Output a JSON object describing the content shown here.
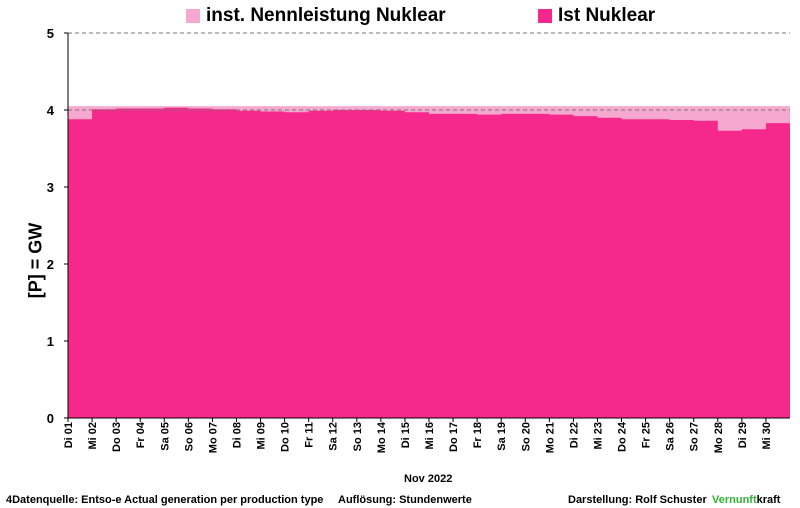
{
  "legend": [
    {
      "label": "inst. Nennleistung Nuklear",
      "color": "#f7a8cf"
    },
    {
      "label": "Ist Nuklear",
      "color": "#f7288c"
    }
  ],
  "footer": {
    "source": "4Datenquelle: Entso-e  Actual generation per production type",
    "resolution": "Auflösung: Stundenwerte",
    "author": "Darstellung:  Rolf Schuster",
    "brand_green": "Vernunft",
    "brand_black": "kraft"
  },
  "chart_data": {
    "type": "area",
    "ylabel": "[P]  = GW",
    "xlabel": "Nov 2022",
    "ylim": [
      0,
      5
    ],
    "yticks": [
      0,
      1,
      2,
      3,
      4,
      5
    ],
    "gridlines_dashed_at": [
      4,
      5
    ],
    "categories": [
      "Di 01",
      "Mi 02",
      "Do 03",
      "Fr 04",
      "Sa 05",
      "So 06",
      "Mo 07",
      "Di 08",
      "Mi 09",
      "Do 10",
      "Fr 11",
      "Sa 12",
      "So 13",
      "Mo 14",
      "Di 15",
      "Mi 16",
      "Do 17",
      "Fr 18",
      "Sa 19",
      "So 20",
      "Mo 21",
      "Di 22",
      "Mi 23",
      "Do 24",
      "Fr 25",
      "Sa 26",
      "So 27",
      "Mo 28",
      "Di 29",
      "Mi 30"
    ],
    "series": [
      {
        "name": "inst. Nennleistung Nuklear",
        "values": [
          4.05,
          4.05,
          4.05,
          4.05,
          4.05,
          4.05,
          4.05,
          4.05,
          4.05,
          4.05,
          4.05,
          4.05,
          4.05,
          4.05,
          4.05,
          4.05,
          4.05,
          4.05,
          4.05,
          4.05,
          4.05,
          4.05,
          4.05,
          4.05,
          4.05,
          4.05,
          4.05,
          4.05,
          4.05,
          4.05
        ]
      },
      {
        "name": "Ist Nuklear",
        "values": [
          3.88,
          4.01,
          4.02,
          4.02,
          4.03,
          4.02,
          4.01,
          3.99,
          3.98,
          3.97,
          3.99,
          4.0,
          4.0,
          3.99,
          3.97,
          3.95,
          3.95,
          3.94,
          3.95,
          3.95,
          3.94,
          3.92,
          3.9,
          3.88,
          3.88,
          3.87,
          3.86,
          3.73,
          3.75,
          3.83
        ]
      }
    ]
  }
}
